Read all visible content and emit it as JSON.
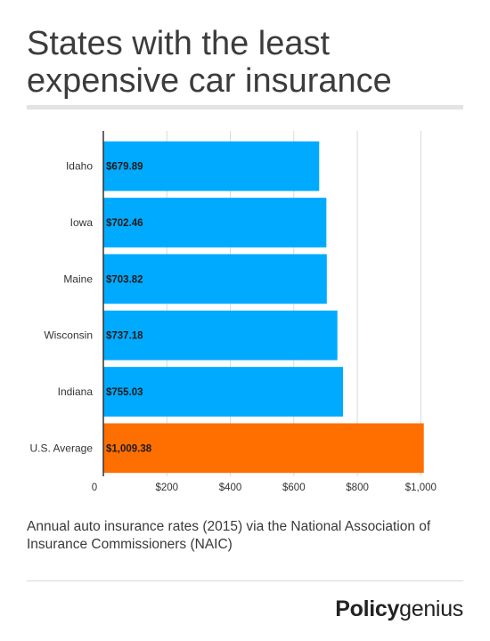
{
  "title": "States with the least expensive car insurance",
  "caption": "Annual auto insurance rates (2015) via the National Association of Insurance Commissioners (NAIC)",
  "brand": {
    "bold": "Policy",
    "light": "genius"
  },
  "colors": {
    "bar": "#00aaff",
    "highlight": "#ff6f00",
    "grid": "#d9d9d9",
    "axis": "#333333"
  },
  "chart_data": {
    "type": "bar",
    "orientation": "horizontal",
    "categories": [
      "Idaho",
      "Iowa",
      "Maine",
      "Wisconsin",
      "Indiana",
      "U.S. Average"
    ],
    "values": [
      679.89,
      702.46,
      703.82,
      737.18,
      755.03,
      1009.38
    ],
    "value_labels": [
      "$679.89",
      "$702.46",
      "$703.82",
      "$737.18",
      "$755.03",
      "$1,009.38"
    ],
    "highlight_index": 5,
    "xlim": [
      0,
      1100
    ],
    "xticks": [
      0,
      200,
      400,
      600,
      800,
      1000
    ],
    "xtick_labels": [
      "0",
      "$200",
      "$400",
      "$600",
      "$800",
      "$1,000"
    ],
    "grid": true
  }
}
